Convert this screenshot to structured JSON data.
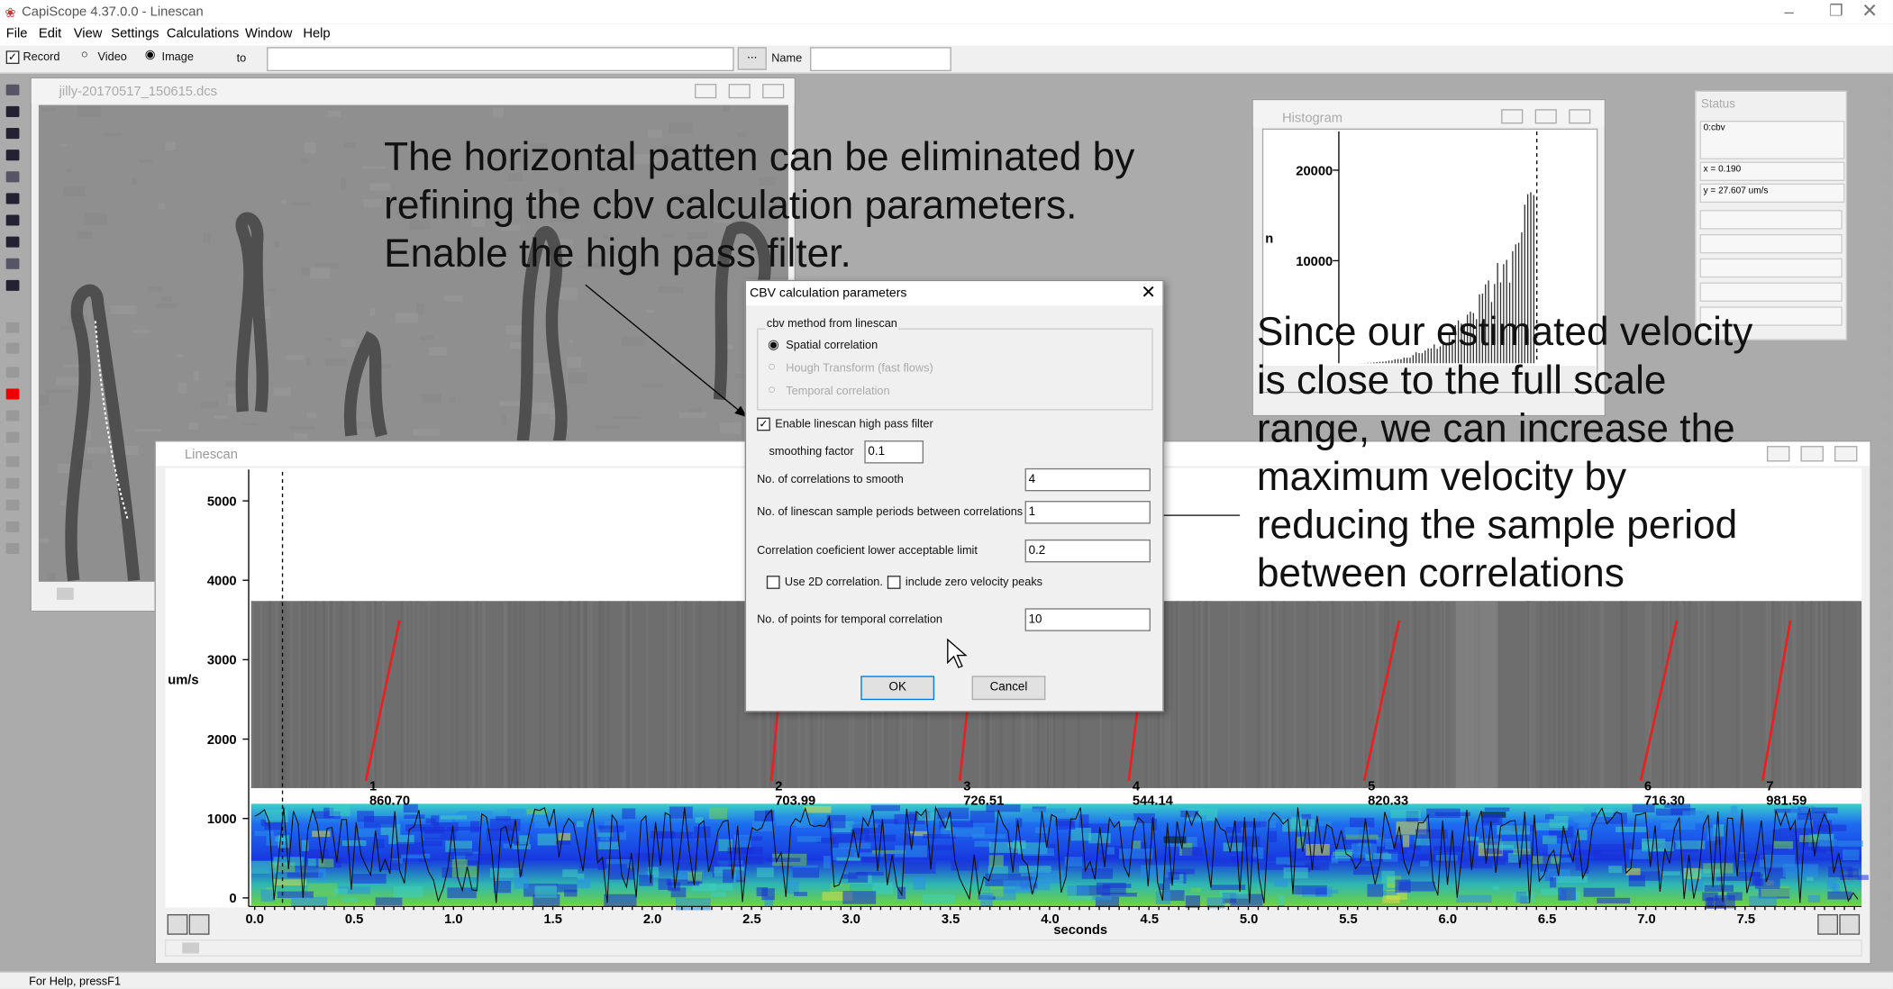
{
  "app": {
    "title": "CapiScope 4.37.0.0 - Linescan",
    "menu": [
      "File",
      "Edit",
      "View",
      "Settings",
      "Calculations",
      "Window",
      "Help"
    ],
    "toolbar": {
      "record": "Record",
      "video": "Video",
      "image": "Image",
      "to": "to",
      "browse": "...",
      "name_label": "Name"
    }
  },
  "image_window": {
    "title": "jilly-20170517_150615.dcs"
  },
  "annotations": [
    [
      "The horizontal patten can be eliminated by",
      "refining the cbv calculation parameters.",
      "Enable the high pass filter."
    ],
    [
      "Since our estimated velocity",
      "is close to the full scale",
      "range, we can increase the",
      "maximum velocity by",
      "reducing the sample period",
      "between correlations"
    ]
  ],
  "dialog": {
    "title": "CBV calculation parameters",
    "group": "cbv method from linescan",
    "methods": [
      "Spatial correlation",
      "Hough Transform (fast flows)",
      "Temporal correlation"
    ],
    "high_pass": "Enable linescan high pass filter",
    "smoothing_label": "smoothing factor",
    "smoothing_value": "0.1",
    "fields": [
      {
        "label": "No. of correlations to smooth",
        "value": "4"
      },
      {
        "label": "No. of linescan sample periods between correlations",
        "value": "1"
      },
      {
        "label": "Correlation coeficient lower acceptable limit",
        "value": "0.2"
      }
    ],
    "use_2d": "Use 2D correlation.",
    "zero_peaks": "include zero velocity peaks",
    "temporal": {
      "label": "No. of points for temporal correlation",
      "value": "10"
    },
    "ok": "OK",
    "cancel": "Cancel"
  },
  "histogram": {
    "title": "Histogram",
    "y_label": "n",
    "yticks": [
      "20000",
      "10000"
    ]
  },
  "status_panel": {
    "title": "Status",
    "fields": [
      "0:cbv",
      "x = 0.190",
      "y = 27.607 um/s"
    ]
  },
  "linescan": {
    "title": "Linescan",
    "y_label": "um/s",
    "x_label": "seconds",
    "yticks": [
      "5000",
      "4000",
      "3000",
      "2000",
      "1000",
      "0"
    ],
    "xticks": [
      "0.0",
      "0.5",
      "1.0",
      "1.5",
      "2.0",
      "2.5",
      "3.0",
      "3.5",
      "4.0",
      "4.5",
      "5.0",
      "5.5",
      "6.0",
      "6.5",
      "7.0",
      "7.5"
    ],
    "markers": [
      {
        "id": "1",
        "velocity": "860.70"
      },
      {
        "id": "2",
        "velocity": "703.99"
      },
      {
        "id": "3",
        "velocity": "726.51"
      },
      {
        "id": "4",
        "velocity": "544.14"
      },
      {
        "id": "5",
        "velocity": "820.33"
      },
      {
        "id": "6",
        "velocity": "716.30"
      },
      {
        "id": "7",
        "velocity": "981.59"
      }
    ]
  },
  "status_bar": "For Help, pressF1"
}
